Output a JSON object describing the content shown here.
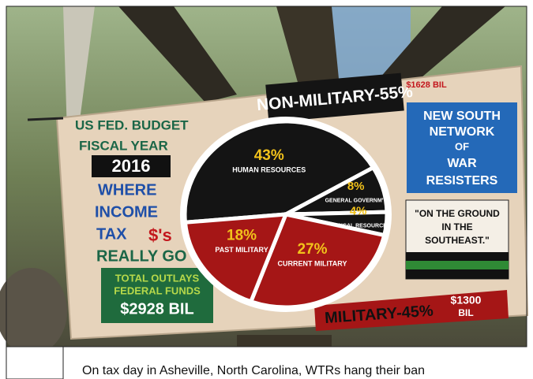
{
  "banner": {
    "left_panel": {
      "lines": [
        "US FED. BUDGET",
        "FISCAL YEAR",
        "2016",
        "WHERE",
        "INCOME",
        "TAX",
        "$'s",
        "REALLY GO"
      ]
    },
    "outlays_box": {
      "lines": [
        "TOTAL OUTLAYS",
        "FEDERAL FUNDS"
      ],
      "amount": "$2928 BIL"
    },
    "non_military": {
      "title": "NON-MILITARY-55%",
      "amount": "$1628 BIL"
    },
    "org_box": {
      "lines": [
        "NEW SOUTH",
        "NETWORK",
        "OF",
        "WAR",
        "RESISTERS"
      ]
    },
    "slogan_box": {
      "lines": [
        "\"ON THE GROUND",
        "IN THE",
        "SOUTHEAST.\""
      ]
    },
    "military": {
      "title": "MILITARY-45%",
      "amount_lines": [
        "$1300",
        "BIL"
      ]
    },
    "pie": {
      "slices": [
        {
          "value": 43,
          "label": "43%",
          "name": "HUMAN RESOURCES",
          "color": "#141414"
        },
        {
          "value": 8,
          "label": "8%",
          "name": "GENERAL GOVERNM'T",
          "color": "#141414"
        },
        {
          "value": 4,
          "label": "4%",
          "name": "PHYSICAL RESOURCES",
          "color": "#141414"
        },
        {
          "value": 27,
          "label": "27%",
          "name": "CURRENT MILITARY",
          "color": "#a51616"
        },
        {
          "value": 18,
          "label": "18%",
          "name": "PAST MILITARY",
          "color": "#a51616"
        }
      ]
    }
  },
  "caption": "On tax day in Asheville, North Carolina, WTRs hang their ban"
}
